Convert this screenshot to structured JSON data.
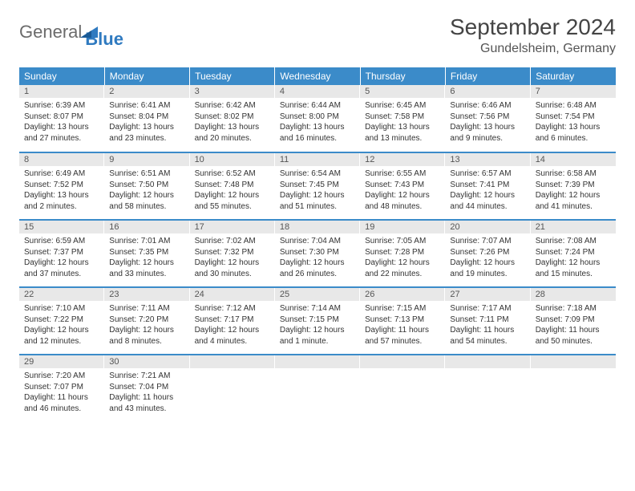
{
  "brand": {
    "general": "General",
    "blue": "Blue"
  },
  "title": "September 2024",
  "location": "Gundelsheim, Germany",
  "colors": {
    "header_bg": "#3b8bc9",
    "header_text": "#ffffff",
    "daynum_bg": "#e8e8e8",
    "border": "#3b8bc9",
    "text": "#333333",
    "brand_gray": "#6b6b6b",
    "brand_blue": "#2f7ac0"
  },
  "typography": {
    "title_fontsize": 28,
    "day_fontsize": 10,
    "header_fontsize": 12
  },
  "weekdays": [
    "Sunday",
    "Monday",
    "Tuesday",
    "Wednesday",
    "Thursday",
    "Friday",
    "Saturday"
  ],
  "weeks": [
    [
      {
        "day": "1",
        "sunrise": "Sunrise: 6:39 AM",
        "sunset": "Sunset: 8:07 PM",
        "daylight1": "Daylight: 13 hours",
        "daylight2": "and 27 minutes."
      },
      {
        "day": "2",
        "sunrise": "Sunrise: 6:41 AM",
        "sunset": "Sunset: 8:04 PM",
        "daylight1": "Daylight: 13 hours",
        "daylight2": "and 23 minutes."
      },
      {
        "day": "3",
        "sunrise": "Sunrise: 6:42 AM",
        "sunset": "Sunset: 8:02 PM",
        "daylight1": "Daylight: 13 hours",
        "daylight2": "and 20 minutes."
      },
      {
        "day": "4",
        "sunrise": "Sunrise: 6:44 AM",
        "sunset": "Sunset: 8:00 PM",
        "daylight1": "Daylight: 13 hours",
        "daylight2": "and 16 minutes."
      },
      {
        "day": "5",
        "sunrise": "Sunrise: 6:45 AM",
        "sunset": "Sunset: 7:58 PM",
        "daylight1": "Daylight: 13 hours",
        "daylight2": "and 13 minutes."
      },
      {
        "day": "6",
        "sunrise": "Sunrise: 6:46 AM",
        "sunset": "Sunset: 7:56 PM",
        "daylight1": "Daylight: 13 hours",
        "daylight2": "and 9 minutes."
      },
      {
        "day": "7",
        "sunrise": "Sunrise: 6:48 AM",
        "sunset": "Sunset: 7:54 PM",
        "daylight1": "Daylight: 13 hours",
        "daylight2": "and 6 minutes."
      }
    ],
    [
      {
        "day": "8",
        "sunrise": "Sunrise: 6:49 AM",
        "sunset": "Sunset: 7:52 PM",
        "daylight1": "Daylight: 13 hours",
        "daylight2": "and 2 minutes."
      },
      {
        "day": "9",
        "sunrise": "Sunrise: 6:51 AM",
        "sunset": "Sunset: 7:50 PM",
        "daylight1": "Daylight: 12 hours",
        "daylight2": "and 58 minutes."
      },
      {
        "day": "10",
        "sunrise": "Sunrise: 6:52 AM",
        "sunset": "Sunset: 7:48 PM",
        "daylight1": "Daylight: 12 hours",
        "daylight2": "and 55 minutes."
      },
      {
        "day": "11",
        "sunrise": "Sunrise: 6:54 AM",
        "sunset": "Sunset: 7:45 PM",
        "daylight1": "Daylight: 12 hours",
        "daylight2": "and 51 minutes."
      },
      {
        "day": "12",
        "sunrise": "Sunrise: 6:55 AM",
        "sunset": "Sunset: 7:43 PM",
        "daylight1": "Daylight: 12 hours",
        "daylight2": "and 48 minutes."
      },
      {
        "day": "13",
        "sunrise": "Sunrise: 6:57 AM",
        "sunset": "Sunset: 7:41 PM",
        "daylight1": "Daylight: 12 hours",
        "daylight2": "and 44 minutes."
      },
      {
        "day": "14",
        "sunrise": "Sunrise: 6:58 AM",
        "sunset": "Sunset: 7:39 PM",
        "daylight1": "Daylight: 12 hours",
        "daylight2": "and 41 minutes."
      }
    ],
    [
      {
        "day": "15",
        "sunrise": "Sunrise: 6:59 AM",
        "sunset": "Sunset: 7:37 PM",
        "daylight1": "Daylight: 12 hours",
        "daylight2": "and 37 minutes."
      },
      {
        "day": "16",
        "sunrise": "Sunrise: 7:01 AM",
        "sunset": "Sunset: 7:35 PM",
        "daylight1": "Daylight: 12 hours",
        "daylight2": "and 33 minutes."
      },
      {
        "day": "17",
        "sunrise": "Sunrise: 7:02 AM",
        "sunset": "Sunset: 7:32 PM",
        "daylight1": "Daylight: 12 hours",
        "daylight2": "and 30 minutes."
      },
      {
        "day": "18",
        "sunrise": "Sunrise: 7:04 AM",
        "sunset": "Sunset: 7:30 PM",
        "daylight1": "Daylight: 12 hours",
        "daylight2": "and 26 minutes."
      },
      {
        "day": "19",
        "sunrise": "Sunrise: 7:05 AM",
        "sunset": "Sunset: 7:28 PM",
        "daylight1": "Daylight: 12 hours",
        "daylight2": "and 22 minutes."
      },
      {
        "day": "20",
        "sunrise": "Sunrise: 7:07 AM",
        "sunset": "Sunset: 7:26 PM",
        "daylight1": "Daylight: 12 hours",
        "daylight2": "and 19 minutes."
      },
      {
        "day": "21",
        "sunrise": "Sunrise: 7:08 AM",
        "sunset": "Sunset: 7:24 PM",
        "daylight1": "Daylight: 12 hours",
        "daylight2": "and 15 minutes."
      }
    ],
    [
      {
        "day": "22",
        "sunrise": "Sunrise: 7:10 AM",
        "sunset": "Sunset: 7:22 PM",
        "daylight1": "Daylight: 12 hours",
        "daylight2": "and 12 minutes."
      },
      {
        "day": "23",
        "sunrise": "Sunrise: 7:11 AM",
        "sunset": "Sunset: 7:20 PM",
        "daylight1": "Daylight: 12 hours",
        "daylight2": "and 8 minutes."
      },
      {
        "day": "24",
        "sunrise": "Sunrise: 7:12 AM",
        "sunset": "Sunset: 7:17 PM",
        "daylight1": "Daylight: 12 hours",
        "daylight2": "and 4 minutes."
      },
      {
        "day": "25",
        "sunrise": "Sunrise: 7:14 AM",
        "sunset": "Sunset: 7:15 PM",
        "daylight1": "Daylight: 12 hours",
        "daylight2": "and 1 minute."
      },
      {
        "day": "26",
        "sunrise": "Sunrise: 7:15 AM",
        "sunset": "Sunset: 7:13 PM",
        "daylight1": "Daylight: 11 hours",
        "daylight2": "and 57 minutes."
      },
      {
        "day": "27",
        "sunrise": "Sunrise: 7:17 AM",
        "sunset": "Sunset: 7:11 PM",
        "daylight1": "Daylight: 11 hours",
        "daylight2": "and 54 minutes."
      },
      {
        "day": "28",
        "sunrise": "Sunrise: 7:18 AM",
        "sunset": "Sunset: 7:09 PM",
        "daylight1": "Daylight: 11 hours",
        "daylight2": "and 50 minutes."
      }
    ],
    [
      {
        "day": "29",
        "sunrise": "Sunrise: 7:20 AM",
        "sunset": "Sunset: 7:07 PM",
        "daylight1": "Daylight: 11 hours",
        "daylight2": "and 46 minutes."
      },
      {
        "day": "30",
        "sunrise": "Sunrise: 7:21 AM",
        "sunset": "Sunset: 7:04 PM",
        "daylight1": "Daylight: 11 hours",
        "daylight2": "and 43 minutes."
      },
      {
        "empty": true
      },
      {
        "empty": true
      },
      {
        "empty": true
      },
      {
        "empty": true
      },
      {
        "empty": true
      }
    ]
  ]
}
